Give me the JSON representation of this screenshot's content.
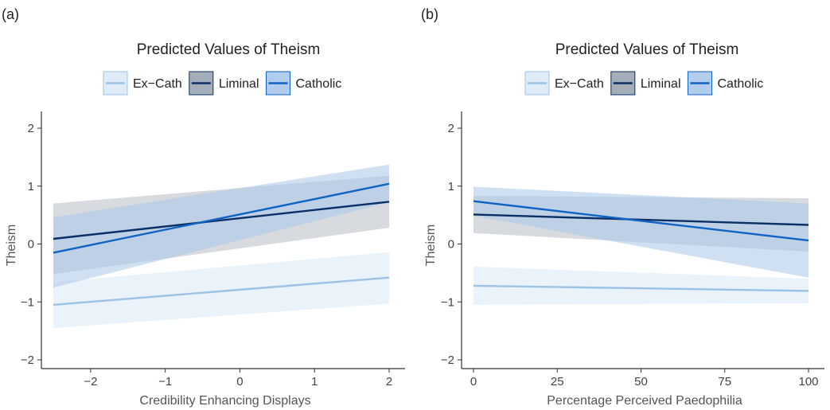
{
  "chart_data": [
    {
      "panel_label": "(a)",
      "type": "line",
      "title": "Predicted Values of Theism",
      "xlabel": "Credibility Enhancing Displays",
      "ylabel": "Theism",
      "xlim": [
        -2.5,
        2
      ],
      "ylim": [
        -2.2,
        2.2
      ],
      "xticks": [
        -2,
        -1,
        0,
        1,
        2
      ],
      "xtick_labels": [
        "−2",
        "−1",
        "0",
        "1",
        "2"
      ],
      "yticks": [
        -2,
        -1,
        0,
        1,
        2
      ],
      "ytick_labels": [
        "−2",
        "−1",
        "0",
        "1",
        "2"
      ],
      "grid": false,
      "legend_position": "top",
      "series": [
        {
          "name": "Ex−Cath",
          "color": "#9cc3e6",
          "band_color": "#dce9f6",
          "band_opacity": 0.6,
          "x": [
            -2.5,
            2
          ],
          "y": [
            -1.05,
            -0.58
          ],
          "lower": [
            -1.45,
            -1.03
          ],
          "upper": [
            -0.66,
            -0.14
          ]
        },
        {
          "name": "Liminal",
          "color": "#0b2f66",
          "band_color": "#9aa5b1",
          "band_opacity": 0.4,
          "x": [
            -2.5,
            2
          ],
          "y": [
            0.09,
            0.73
          ],
          "lower": [
            -0.52,
            0.28
          ],
          "upper": [
            0.7,
            1.18
          ]
        },
        {
          "name": "Catholic",
          "color": "#0f63c2",
          "band_color": "#a9c6ea",
          "band_opacity": 0.55,
          "x": [
            -2.5,
            2
          ],
          "y": [
            -0.15,
            1.04
          ],
          "lower": [
            -0.75,
            0.72
          ],
          "upper": [
            0.46,
            1.37
          ]
        }
      ]
    },
    {
      "panel_label": "(b)",
      "type": "line",
      "title": "Predicted Values of Theism",
      "xlabel": "Percentage Perceived Paedophilia",
      "ylabel": "Theism",
      "xlim": [
        0,
        100
      ],
      "ylim": [
        -2.2,
        2.2
      ],
      "xticks": [
        0,
        25,
        50,
        75,
        100
      ],
      "xtick_labels": [
        "0",
        "25",
        "50",
        "75",
        "100"
      ],
      "yticks": [
        -2,
        -1,
        0,
        1,
        2
      ],
      "ytick_labels": [
        "−2",
        "−1",
        "0",
        "1",
        "2"
      ],
      "grid": false,
      "legend_position": "top",
      "series": [
        {
          "name": "Ex−Cath",
          "color": "#9cc3e6",
          "band_color": "#dce9f6",
          "band_opacity": 0.6,
          "x": [
            0,
            100
          ],
          "y": [
            -0.72,
            -0.81
          ],
          "lower": [
            -1.05,
            -1.02
          ],
          "upper": [
            -0.39,
            -0.6
          ]
        },
        {
          "name": "Liminal",
          "color": "#0b2f66",
          "band_color": "#9aa5b1",
          "band_opacity": 0.4,
          "x": [
            0,
            100
          ],
          "y": [
            0.51,
            0.33
          ],
          "lower": [
            0.19,
            -0.13
          ],
          "upper": [
            0.83,
            0.79
          ]
        },
        {
          "name": "Catholic",
          "color": "#0f63c2",
          "band_color": "#a9c6ea",
          "band_opacity": 0.55,
          "x": [
            0,
            100
          ],
          "y": [
            0.74,
            0.06
          ],
          "lower": [
            0.49,
            -0.58
          ],
          "upper": [
            0.99,
            0.7
          ]
        }
      ]
    }
  ]
}
